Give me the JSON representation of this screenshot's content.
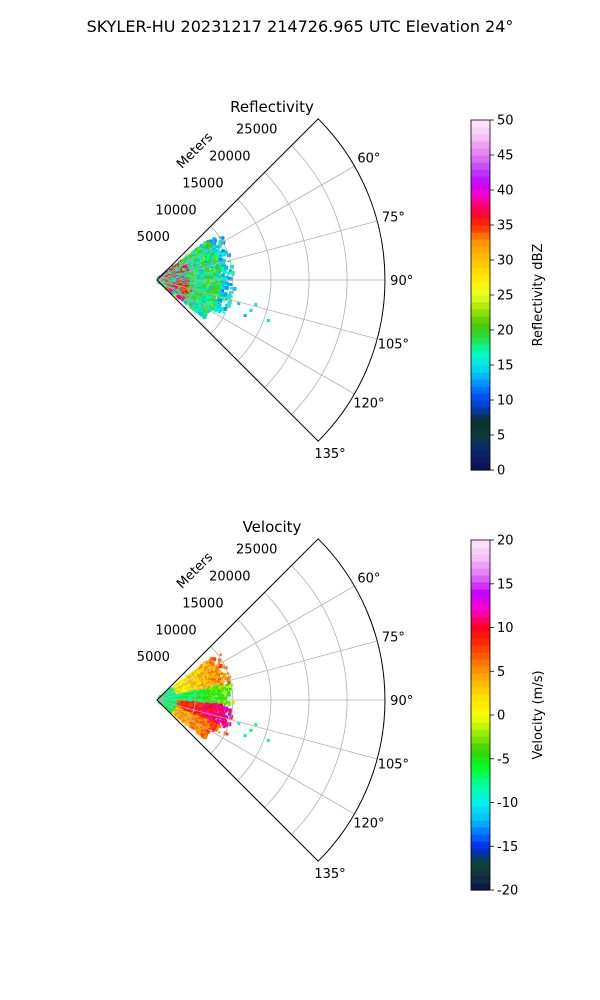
{
  "figure": {
    "suptitle": "SKYLER-HU  20231217  214726.965 UTC Elevation 24°"
  },
  "chart_data": [
    {
      "type": "heatmap",
      "subtype": "polar-sector-ppi",
      "title": "Reflectivity",
      "theta_ticks": [
        "60°",
        "75°",
        "90°",
        "105°",
        "120°",
        "135°"
      ],
      "theta_tick_values": [
        60,
        75,
        90,
        105,
        120,
        135
      ],
      "theta_range_deg": [
        45,
        135
      ],
      "radial_label": "Meters",
      "radial_ticks": [
        "5000",
        "10000",
        "15000",
        "20000",
        "25000"
      ],
      "radial_tick_values": [
        5000,
        10000,
        15000,
        20000,
        25000
      ],
      "r_range": [
        0,
        30000
      ],
      "data_extent_m": 10000,
      "colorbar": {
        "label": "Reflectivity dBZ",
        "ticks": [
          "0",
          "5",
          "10",
          "15",
          "20",
          "25",
          "30",
          "35",
          "40",
          "45",
          "50"
        ],
        "range": [
          0,
          50
        ]
      },
      "dominant_values_note": "mostly 15–25 dBZ, with 35–40 dBZ cores near the radar"
    },
    {
      "type": "heatmap",
      "subtype": "polar-sector-ppi",
      "title": "Velocity",
      "theta_ticks": [
        "60°",
        "75°",
        "90°",
        "105°",
        "120°",
        "135°"
      ],
      "theta_tick_values": [
        60,
        75,
        90,
        105,
        120,
        135
      ],
      "theta_range_deg": [
        45,
        135
      ],
      "radial_label": "Meters",
      "radial_ticks": [
        "5000",
        "10000",
        "15000",
        "20000",
        "25000"
      ],
      "radial_tick_values": [
        5000,
        10000,
        15000,
        20000,
        25000
      ],
      "r_range": [
        0,
        30000
      ],
      "data_extent_m": 10000,
      "colorbar": {
        "label": "Velocity (m/s)",
        "ticks": [
          "-20",
          "-15",
          "-10",
          "-5",
          "0",
          "5",
          "10",
          "15",
          "20"
        ],
        "range": [
          -20,
          20
        ]
      }
    }
  ]
}
